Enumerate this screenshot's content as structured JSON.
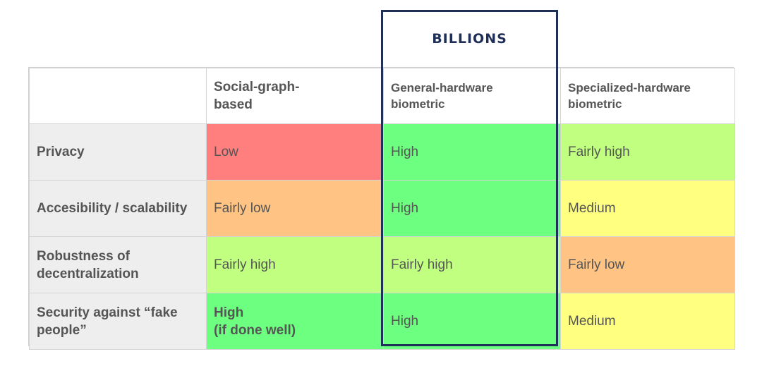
{
  "logo": {
    "text": "BILLIONS",
    "color": "#1f2f57"
  },
  "table": {
    "headers": [
      "",
      "Social-graph-based",
      "General-hardware biometric",
      "Specialized-hardware biometric"
    ],
    "header_lines": {
      "social": [
        "Social-graph-",
        "based"
      ],
      "general": [
        "General-hardware",
        "biometric"
      ],
      "special": [
        "Specialized-hardware",
        "biometric"
      ]
    },
    "rows": [
      {
        "label": "Privacy",
        "label_lines": [
          "Privacy"
        ],
        "social": "Low",
        "general": "High",
        "special": "Fairly high"
      },
      {
        "label": "Accesibility / scalability",
        "label_lines": [
          "Accesibility / scalability"
        ],
        "social": "Fairly low",
        "general": "High",
        "special": "Medium"
      },
      {
        "label": "Robustness of decentralization",
        "label_lines": [
          "Robustness of",
          "decentralization"
        ],
        "social": "Fairly high",
        "general": "Fairly high",
        "special": "Fairly low"
      },
      {
        "label": "Security against “fake people”",
        "label_lines": [
          "Security against “fake",
          "people”"
        ],
        "social_lines": [
          "High",
          "(if done well)"
        ],
        "general": "High",
        "special": "Medium"
      }
    ]
  },
  "colors": {
    "low": "#ff7f7f",
    "fairly_low": "#ffc384",
    "medium": "#ffff80",
    "fairly_high": "#c0ff80",
    "high": "#6dff7f",
    "highlight_border": "#1f3058"
  }
}
